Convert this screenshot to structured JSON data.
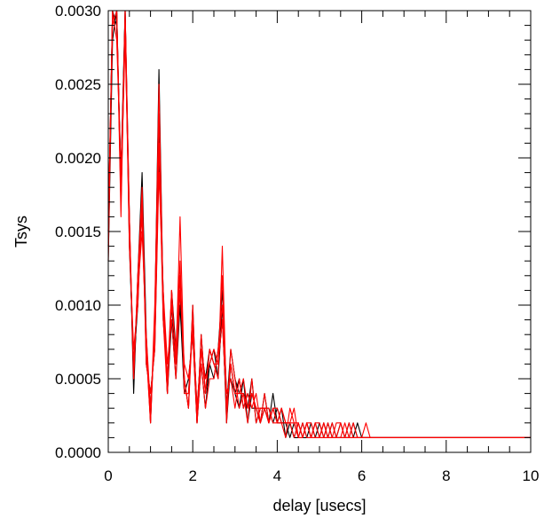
{
  "chart_data": {
    "type": "line",
    "title": "",
    "xlabel": "delay [usecs]",
    "ylabel": "Tsys",
    "xlim": [
      0,
      10
    ],
    "ylim": [
      0,
      0.003
    ],
    "x_ticks": [
      "0",
      "2",
      "4",
      "6",
      "8",
      "10"
    ],
    "y_ticks": [
      "0.0000",
      "0.0005",
      "0.0010",
      "0.0015",
      "0.0020",
      "0.0025",
      "0.0030"
    ],
    "grid": false,
    "legend": "none",
    "x": [
      0.0,
      0.1,
      0.2,
      0.3,
      0.4,
      0.5,
      0.6,
      0.7,
      0.8,
      0.9,
      1.0,
      1.1,
      1.2,
      1.3,
      1.4,
      1.5,
      1.6,
      1.7,
      1.8,
      1.9,
      2.0,
      2.1,
      2.2,
      2.3,
      2.4,
      2.5,
      2.6,
      2.7,
      2.8,
      2.9,
      3.0,
      3.1,
      3.2,
      3.3,
      3.4,
      3.5,
      3.6,
      3.7,
      3.8,
      3.9,
      4.0,
      4.1,
      4.2,
      4.3,
      4.4,
      4.5,
      4.6,
      4.7,
      4.8,
      4.9,
      5.0,
      5.1,
      5.2,
      5.3,
      5.4,
      5.5,
      5.6,
      5.7,
      5.8,
      5.9,
      6.0,
      6.1,
      6.2,
      6.3,
      6.4,
      6.5,
      6.6,
      6.7,
      6.8,
      6.9,
      7.0,
      7.1,
      7.2,
      7.3,
      7.4,
      7.5,
      7.6,
      7.7,
      7.8,
      7.9,
      8.0,
      8.1,
      8.2,
      8.3,
      8.4,
      8.5,
      8.6,
      8.7,
      8.8,
      8.9,
      9.0,
      9.1,
      9.2,
      9.3,
      9.4,
      9.5,
      9.6,
      9.7,
      9.8,
      9.9,
      10.0
    ],
    "series": [
      {
        "color": "#000000",
        "values": [
          0.0014,
          0.003,
          0.003,
          0.0018,
          0.003,
          0.0016,
          0.0004,
          0.0012,
          0.0019,
          0.0008,
          0.0002,
          0.0009,
          0.0026,
          0.001,
          0.0004,
          0.0011,
          0.0007,
          0.0012,
          0.0005,
          0.0003,
          0.001,
          0.0002,
          0.0008,
          0.0004,
          0.0006,
          0.0007,
          0.0005,
          0.001,
          0.0002,
          0.0006,
          0.0004,
          0.0003,
          0.0005,
          0.0002,
          0.0004,
          0.0003,
          0.0002,
          0.0004,
          0.0002,
          0.0003,
          0.0002,
          0.0003,
          0.0001,
          0.0002,
          0.0001,
          0.0002,
          0.0001,
          0.0001,
          0.0002,
          0.0001,
          0.0001,
          0.0002,
          0.0001,
          0.0001,
          0.0001,
          0.0002,
          0.0001,
          0.0001,
          0.0001,
          0.0002,
          0.0001,
          0.0001,
          0.0001,
          0.0001,
          0.0001,
          0.0001,
          0.0001,
          0.0001,
          0.0001,
          0.0001,
          0.0001,
          0.0001,
          0.0001,
          0.0001,
          0.0001,
          0.0001,
          0.0001,
          0.0001,
          0.0001,
          0.0001,
          0.0001,
          0.0001,
          0.0001,
          0.0001,
          0.0001,
          0.0001,
          0.0001,
          0.0001,
          0.0001,
          0.0001,
          0.0001,
          0.0001,
          0.0001,
          0.0001,
          0.0001,
          0.0001,
          0.0001,
          0.0001,
          0.0001,
          0.0001,
          0.0001
        ]
      },
      {
        "color": "#000000",
        "values": [
          0.0013,
          0.0028,
          0.003,
          0.0017,
          0.0029,
          0.0015,
          0.0005,
          0.0011,
          0.0017,
          0.0007,
          0.0003,
          0.0008,
          0.0022,
          0.0009,
          0.0005,
          0.001,
          0.0006,
          0.0011,
          0.0004,
          0.0004,
          0.0009,
          0.0003,
          0.0007,
          0.0005,
          0.0007,
          0.0006,
          0.0006,
          0.0009,
          0.0003,
          0.0007,
          0.0005,
          0.0004,
          0.0004,
          0.0003,
          0.0005,
          0.0002,
          0.0003,
          0.0003,
          0.0002,
          0.0004,
          0.0002,
          0.0002,
          0.0002,
          0.0002,
          0.0001,
          0.0001,
          0.0002,
          0.0001,
          0.0001,
          0.0001,
          0.0002,
          0.0001,
          0.0001,
          0.0002,
          0.0001,
          0.0001,
          0.0001,
          0.0001,
          0.0002,
          0.0001,
          0.0001,
          0.0001,
          0.0001,
          0.0001,
          0.0001,
          0.0001,
          0.0001,
          0.0001,
          0.0001,
          0.0001,
          0.0001,
          0.0001,
          0.0001,
          0.0001,
          0.0001,
          0.0001,
          0.0001,
          0.0001,
          0.0001,
          0.0001,
          0.0001,
          0.0001,
          0.0001,
          0.0001,
          0.0001,
          0.0001,
          0.0001,
          0.0001,
          0.0001,
          0.0001,
          0.0001,
          0.0001,
          0.0001,
          0.0001,
          0.0001,
          0.0001,
          0.0001,
          0.0001,
          0.0001,
          0.0001,
          0.0001
        ]
      },
      {
        "color": "#000000",
        "values": [
          0.0015,
          0.003,
          0.0029,
          0.0019,
          0.003,
          0.0014,
          0.0006,
          0.001,
          0.0018,
          0.0006,
          0.0004,
          0.0007,
          0.002,
          0.0011,
          0.0004,
          0.0009,
          0.0005,
          0.001,
          0.0004,
          0.0005,
          0.0008,
          0.0002,
          0.0006,
          0.0003,
          0.0006,
          0.0005,
          0.0007,
          0.0011,
          0.0004,
          0.0005,
          0.0004,
          0.0005,
          0.0003,
          0.0004,
          0.0003,
          0.0003,
          0.0002,
          0.0003,
          0.0003,
          0.0002,
          0.0003,
          0.0002,
          0.0002,
          0.0001,
          0.0002,
          0.0001,
          0.0001,
          0.0002,
          0.0001,
          0.0002,
          0.0001,
          0.0001,
          0.0002,
          0.0001,
          0.0001,
          0.0001,
          0.0001,
          0.0002,
          0.0001,
          0.0001,
          0.0001,
          0.0001,
          0.0001,
          0.0001,
          0.0001,
          0.0001,
          0.0001,
          0.0001,
          0.0001,
          0.0001,
          0.0001,
          0.0001,
          0.0001,
          0.0001,
          0.0001,
          0.0001,
          0.0001,
          0.0001,
          0.0001,
          0.0001,
          0.0001,
          0.0001,
          0.0001,
          0.0001,
          0.0001,
          0.0001,
          0.0001,
          0.0001,
          0.0001,
          0.0001,
          0.0001,
          0.0001,
          0.0001,
          0.0001,
          0.0001,
          0.0001,
          0.0001,
          0.0001,
          0.0001,
          0.0001,
          0.0001
        ]
      },
      {
        "color": "#ff0000",
        "values": [
          0.0014,
          0.003,
          0.003,
          0.0018,
          0.0028,
          0.0016,
          0.0005,
          0.0012,
          0.0016,
          0.0007,
          0.0002,
          0.0009,
          0.0025,
          0.001,
          0.0005,
          0.0011,
          0.0006,
          0.0016,
          0.0005,
          0.0003,
          0.001,
          0.0002,
          0.0008,
          0.0004,
          0.0007,
          0.0006,
          0.0005,
          0.0014,
          0.0003,
          0.0006,
          0.0004,
          0.0004,
          0.0005,
          0.0003,
          0.0004,
          0.0003,
          0.0002,
          0.0004,
          0.0002,
          0.0003,
          0.0002,
          0.0003,
          0.0002,
          0.0002,
          0.0001,
          0.0002,
          0.0001,
          0.0002,
          0.0002,
          0.0001,
          0.0001,
          0.0002,
          0.0001,
          0.0001,
          0.0001,
          0.0002,
          0.0001,
          0.0001,
          0.0002,
          0.0001,
          0.0001,
          0.0001,
          0.0001,
          0.0001,
          0.0001,
          0.0001,
          0.0001,
          0.0001,
          0.0001,
          0.0001,
          0.0001,
          0.0001,
          0.0001,
          0.0001,
          0.0001,
          0.0001,
          0.0001,
          0.0001,
          0.0001,
          0.0001,
          0.0001,
          0.0001,
          0.0001,
          0.0001,
          0.0001,
          0.0001,
          0.0001,
          0.0001,
          0.0001,
          0.0001,
          0.0001,
          0.0001,
          0.0001,
          0.0001,
          0.0001,
          0.0001,
          0.0001,
          0.0001,
          0.0001,
          0.0001,
          0.0001
        ]
      },
      {
        "color": "#ff0000",
        "values": [
          0.0016,
          0.0029,
          0.003,
          0.0017,
          0.003,
          0.0015,
          0.0006,
          0.0011,
          0.0015,
          0.0008,
          0.0003,
          0.0008,
          0.0021,
          0.0009,
          0.0004,
          0.001,
          0.0007,
          0.0013,
          0.0004,
          0.0004,
          0.0009,
          0.0003,
          0.0007,
          0.0005,
          0.0006,
          0.0007,
          0.0006,
          0.0012,
          0.0002,
          0.0007,
          0.0005,
          0.0003,
          0.0004,
          0.0002,
          0.0005,
          0.0002,
          0.0003,
          0.0003,
          0.0003,
          0.0002,
          0.0002,
          0.0002,
          0.0001,
          0.0003,
          0.0002,
          0.0001,
          0.0002,
          0.0001,
          0.0001,
          0.0002,
          0.0001,
          0.0001,
          0.0001,
          0.0002,
          0.0001,
          0.0001,
          0.0002,
          0.0001,
          0.0001,
          0.0001,
          0.0001,
          0.0001,
          0.0001,
          0.0001,
          0.0001,
          0.0001,
          0.0001,
          0.0001,
          0.0001,
          0.0001,
          0.0001,
          0.0001,
          0.0001,
          0.0001,
          0.0001,
          0.0001,
          0.0001,
          0.0001,
          0.0001,
          0.0001,
          0.0001,
          0.0001,
          0.0001,
          0.0001,
          0.0001,
          0.0001,
          0.0001,
          0.0001,
          0.0001,
          0.0001,
          0.0001,
          0.0001,
          0.0001,
          0.0001,
          0.0001,
          0.0001,
          0.0001,
          0.0001,
          0.0001,
          0.0001,
          0.0001
        ]
      },
      {
        "color": "#ff0000",
        "values": [
          0.0013,
          0.003,
          0.0028,
          0.0019,
          0.0029,
          0.0014,
          0.0007,
          0.001,
          0.0017,
          0.0006,
          0.0004,
          0.0007,
          0.0019,
          0.0011,
          0.0006,
          0.0009,
          0.0005,
          0.0011,
          0.0006,
          0.0005,
          0.0008,
          0.0002,
          0.0006,
          0.0003,
          0.0005,
          0.0005,
          0.0007,
          0.001,
          0.0004,
          0.0005,
          0.0003,
          0.0005,
          0.0003,
          0.0004,
          0.0003,
          0.0004,
          0.0002,
          0.0003,
          0.0002,
          0.0003,
          0.0003,
          0.0002,
          0.0002,
          0.0002,
          0.0003,
          0.0001,
          0.0001,
          0.0002,
          0.0001,
          0.0002,
          0.0002,
          0.0001,
          0.0002,
          0.0001,
          0.0001,
          0.0001,
          0.0001,
          0.0002,
          0.0001,
          0.0001,
          0.0001,
          0.0001,
          0.0001,
          0.0001,
          0.0001,
          0.0001,
          0.0001,
          0.0001,
          0.0001,
          0.0001,
          0.0001,
          0.0001,
          0.0001,
          0.0001,
          0.0001,
          0.0001,
          0.0001,
          0.0001,
          0.0001,
          0.0001,
          0.0001,
          0.0001,
          0.0001,
          0.0001,
          0.0001,
          0.0001,
          0.0001,
          0.0001,
          0.0001,
          0.0001,
          0.0001,
          0.0001,
          0.0001,
          0.0001,
          0.0001,
          0.0001,
          0.0001,
          0.0001,
          0.0001,
          0.0001,
          0.0001
        ]
      },
      {
        "color": "#ff0000",
        "values": [
          0.0015,
          0.003,
          0.003,
          0.0016,
          0.003,
          0.0016,
          0.0005,
          0.0012,
          0.0018,
          0.0007,
          0.0002,
          0.001,
          0.0023,
          0.001,
          0.0004,
          0.0011,
          0.0006,
          0.0012,
          0.0005,
          0.0003,
          0.0009,
          0.0002,
          0.0007,
          0.0004,
          0.0007,
          0.0006,
          0.0006,
          0.0009,
          0.0003,
          0.0006,
          0.0004,
          0.0004,
          0.0004,
          0.0003,
          0.0004,
          0.0003,
          0.0003,
          0.0003,
          0.0002,
          0.0003,
          0.0002,
          0.0003,
          0.0002,
          0.0002,
          0.0002,
          0.0002,
          0.0001,
          0.0002,
          0.0001,
          0.0001,
          0.0001,
          0.0002,
          0.0001,
          0.0001,
          0.0002,
          0.0002,
          0.0001,
          0.0001,
          0.0001,
          0.0001,
          0.0001,
          0.0002,
          0.0001,
          0.0001,
          0.0001,
          0.0001,
          0.0001,
          0.0001,
          0.0001,
          0.0001,
          0.0001,
          0.0001,
          0.0001,
          0.0001,
          0.0001,
          0.0001,
          0.0001,
          0.0001,
          0.0001,
          0.0001,
          0.0001,
          0.0001,
          0.0001,
          0.0001,
          0.0001,
          0.0001,
          0.0001,
          0.0001,
          0.0001,
          0.0001,
          0.0001,
          0.0001,
          0.0001,
          0.0001,
          0.0001,
          0.0001,
          0.0001,
          0.0001,
          0.0001,
          0.0001,
          0.0001
        ]
      }
    ]
  }
}
